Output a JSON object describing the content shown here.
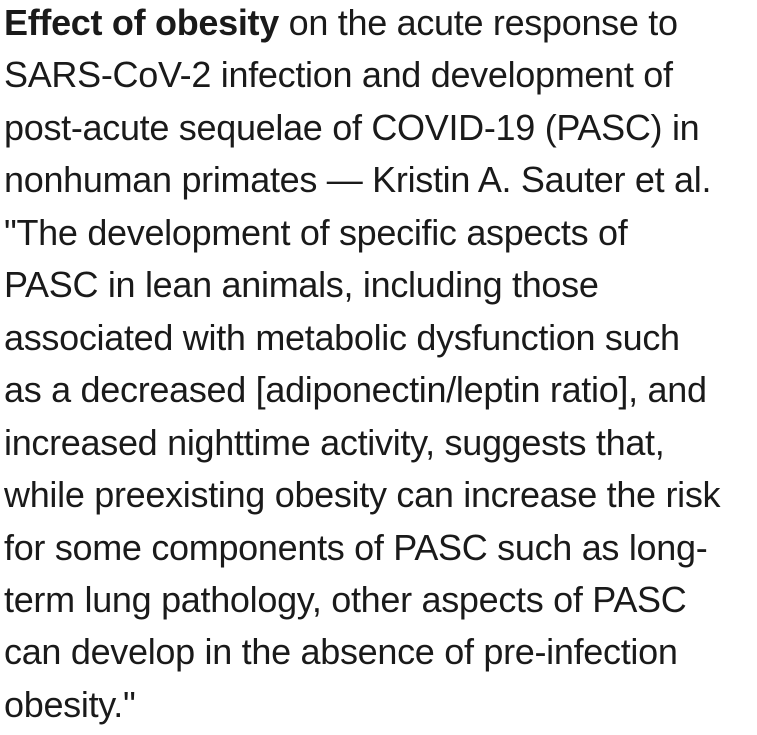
{
  "page": {
    "background_color": "#ffffff",
    "text_color": "#1a1a1a"
  },
  "article": {
    "lead_bold": "Effect of obesity",
    "title": "Effect of obesity on the acute response to SARS-CoV-2 infection and development of post-acute sequelae of COVID-19 (PASC) in nonhuman primates",
    "attribution": "Kristin A. Sauter et al.",
    "quote": "\"The development of specific aspects of PASC in lean animals, including those associated with metabolic dysfunction such as a decreased [adiponectin/leptin ratio], and increased nighttime activity, suggests that, while preexisting obesity can increase the risk for some components of PASC such as long-term lung pathology, other aspects of PASC can develop in the absence of pre-infection obesity.\"",
    "lines": [
      {
        "bold": "Effect of obesity",
        "text": " on the acute response to"
      },
      {
        "text": "SARS-CoV-2 infection and development of"
      },
      {
        "text": "post-acute sequelae of COVID-19 (PASC) in"
      },
      {
        "text": "nonhuman primates — Kristin A. Sauter et al."
      },
      {
        "text": "\"The development of specific aspects of"
      },
      {
        "text": "PASC in lean animals, including those"
      },
      {
        "text": "associated with metabolic dysfunction such"
      },
      {
        "text": "as a decreased [adiponectin/leptin ratio], and"
      },
      {
        "text": "increased nighttime activity, suggests that,"
      },
      {
        "text": "while preexisting obesity can increase the risk"
      },
      {
        "text": "for some components of PASC such as long-"
      },
      {
        "text": "term lung pathology, other aspects of PASC"
      },
      {
        "text": "can develop in the absence of pre-infection"
      },
      {
        "text": "obesity.\""
      }
    ]
  }
}
